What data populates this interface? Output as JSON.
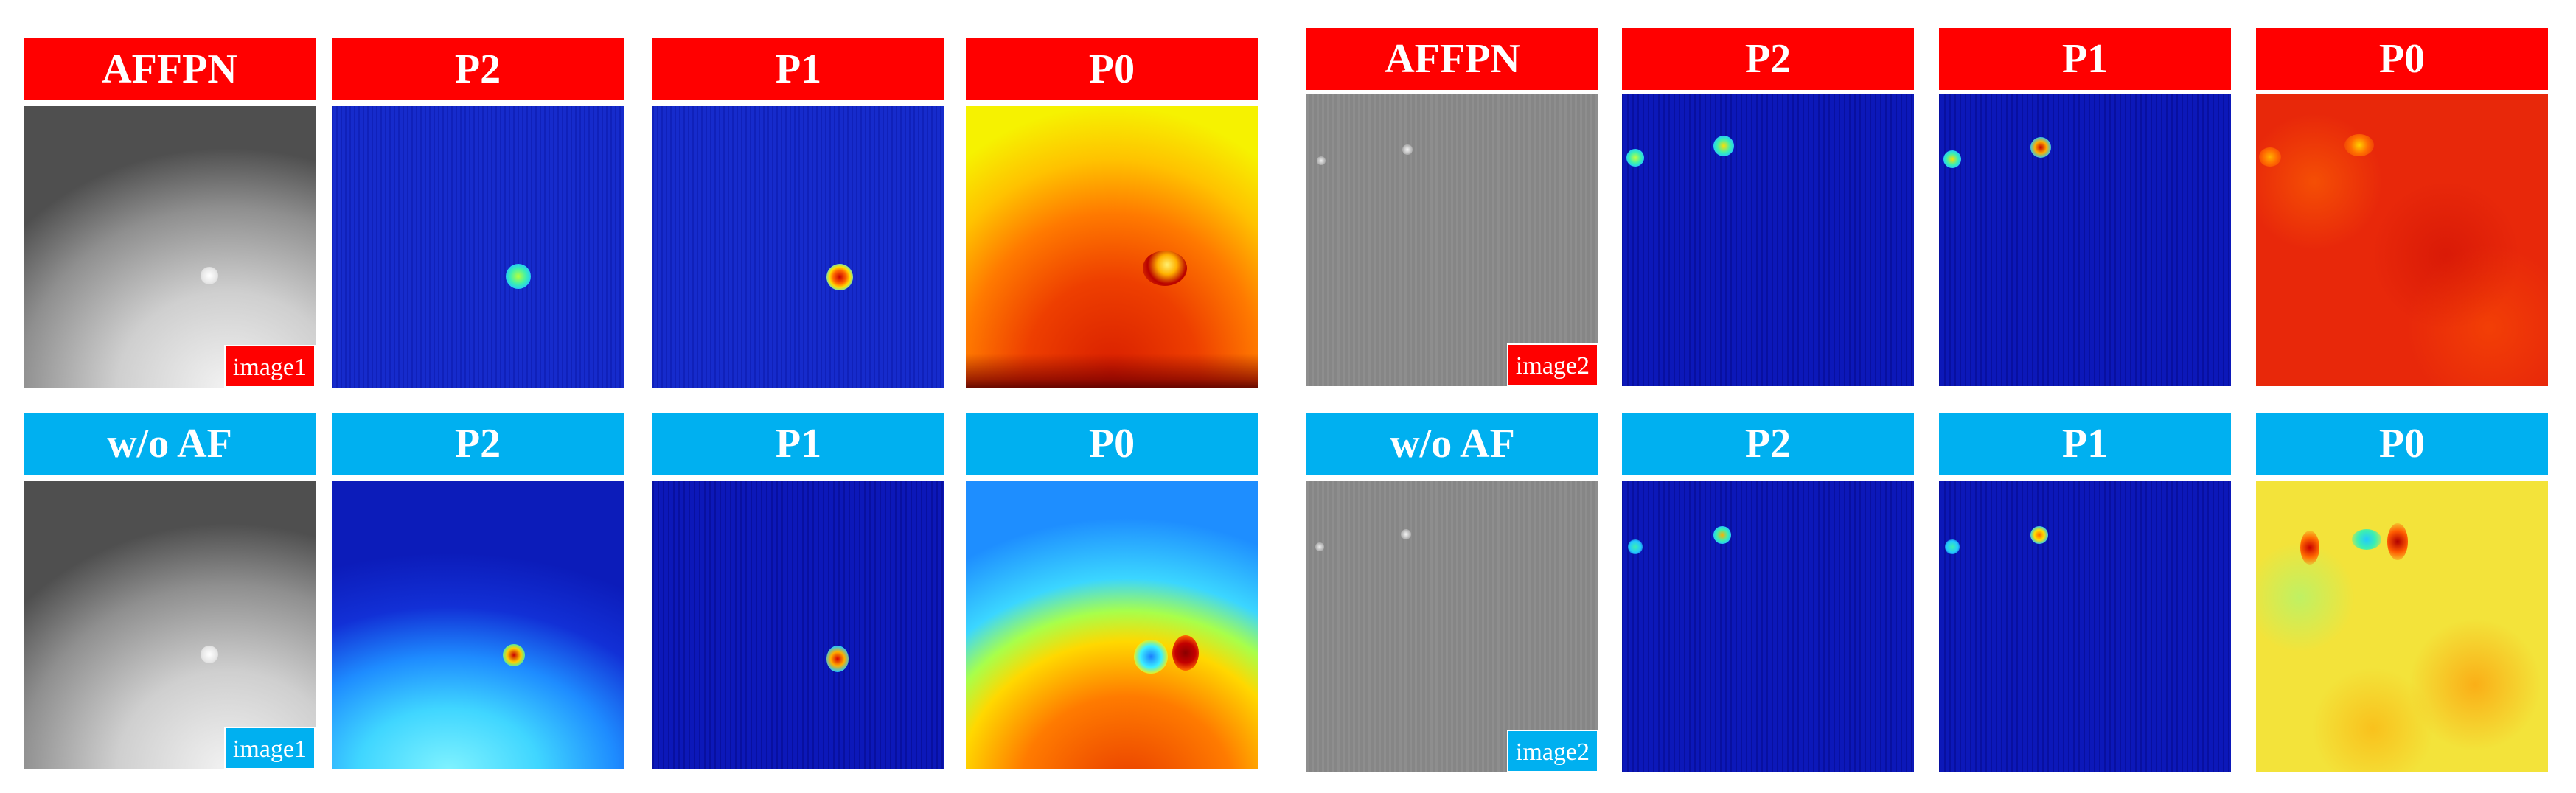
{
  "panels": {
    "left": {
      "rows": [
        {
          "method": "AFFPN",
          "levels": [
            "P2",
            "P1",
            "P0"
          ],
          "image_tag": "image1",
          "theme": "red"
        },
        {
          "method": "w/o AF",
          "levels": [
            "P2",
            "P1",
            "P0"
          ],
          "image_tag": "image1",
          "theme": "blue"
        }
      ]
    },
    "right": {
      "rows": [
        {
          "method": "AFFPN",
          "levels": [
            "P2",
            "P1",
            "P0"
          ],
          "image_tag": "image2",
          "theme": "red"
        },
        {
          "method": "w/o AF",
          "levels": [
            "P2",
            "P1",
            "P0"
          ],
          "image_tag": "image2",
          "theme": "blue"
        }
      ]
    }
  },
  "colors": {
    "red_label": "#ff0000",
    "blue_label": "#00b0f0",
    "label_text": "#ffffff"
  }
}
